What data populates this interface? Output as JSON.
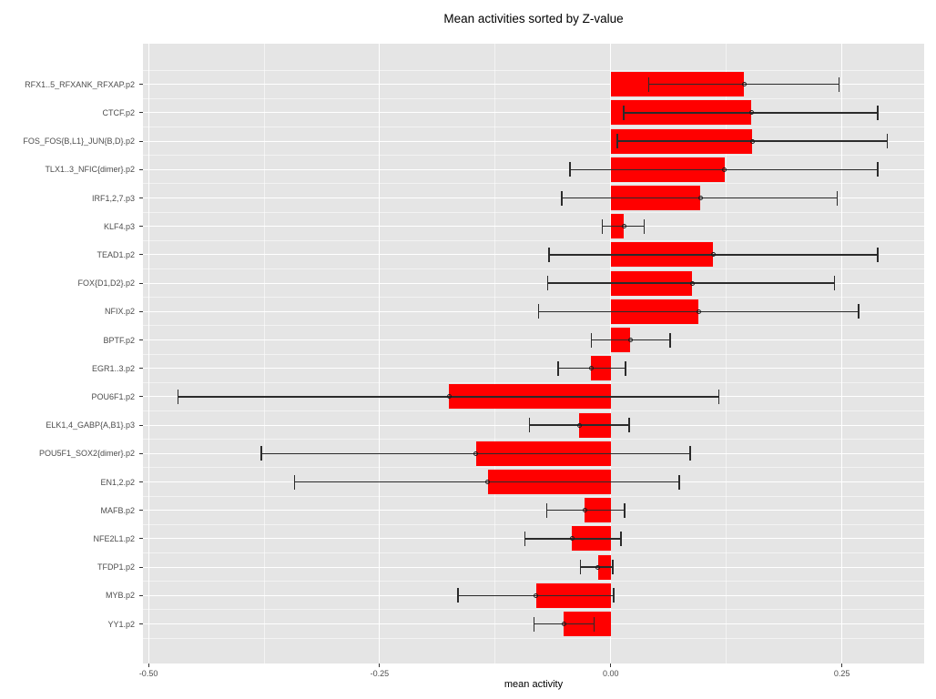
{
  "title": "Mean activities sorted by Z-value",
  "colors": {
    "bar_fill": "#FF0000",
    "panel_background": "#E5E5E5",
    "grid_major": "#FFFFFF",
    "error_bar": "#2B2B2B",
    "axis_tick": "#333333",
    "tick_label_text": "#4D4D4D",
    "title_text": "#000000"
  },
  "chart_data": {
    "type": "bar",
    "orientation": "horizontal",
    "title": "Mean activities sorted by Z-value",
    "xlabel": "mean activity",
    "ylabel": "",
    "legend_position": "none",
    "grid": "on",
    "xlim": [
      -0.506,
      0.339
    ],
    "x_major_ticks": [
      -0.5,
      -0.25,
      0.0,
      0.25
    ],
    "x_tick_labels": [
      "-0.50",
      "-0.25",
      "0.00",
      "0.25"
    ],
    "x_minor_ticks": [
      -0.375,
      -0.125,
      0.125
    ],
    "categories": [
      "RFX1..5_RFXANK_RFXAP.p2",
      "CTCF.p2",
      "FOS_FOS{B,L1}_JUN{B,D}.p2",
      "TLX1..3_NFIC{dimer}.p2",
      "IRF1,2,7.p3",
      "KLF4.p3",
      "TEAD1.p2",
      "FOX{D1,D2}.p2",
      "NFIX.p2",
      "BPTF.p2",
      "EGR1..3.p2",
      "POU6F1.p2",
      "ELK1,4_GABP{A,B1}.p3",
      "POU5F1_SOX2{dimer}.p2",
      "EN1,2.p2",
      "MAFB.p2",
      "NFE2L1.p2",
      "TFDP1.p2",
      "MYB.p2",
      "YY1.p2"
    ],
    "series": [
      {
        "name": "mean activity",
        "values": [
          0.144,
          0.152,
          0.153,
          0.123,
          0.097,
          0.014,
          0.111,
          0.088,
          0.095,
          0.021,
          -0.021,
          -0.175,
          -0.034,
          -0.146,
          -0.133,
          -0.028,
          -0.042,
          -0.014,
          -0.081,
          -0.051
        ]
      }
    ],
    "error_low": [
      0.041,
      0.014,
      0.007,
      -0.044,
      -0.053,
      -0.009,
      -0.067,
      -0.068,
      -0.078,
      -0.021,
      -0.057,
      -0.468,
      -0.088,
      -0.378,
      -0.342,
      -0.069,
      -0.093,
      -0.033,
      -0.165,
      -0.083
    ],
    "error_high": [
      0.247,
      0.289,
      0.299,
      0.289,
      0.245,
      0.036,
      0.289,
      0.242,
      0.268,
      0.064,
      0.016,
      0.117,
      0.02,
      0.086,
      0.074,
      0.015,
      0.011,
      0.002,
      0.003,
      -0.018
    ]
  }
}
